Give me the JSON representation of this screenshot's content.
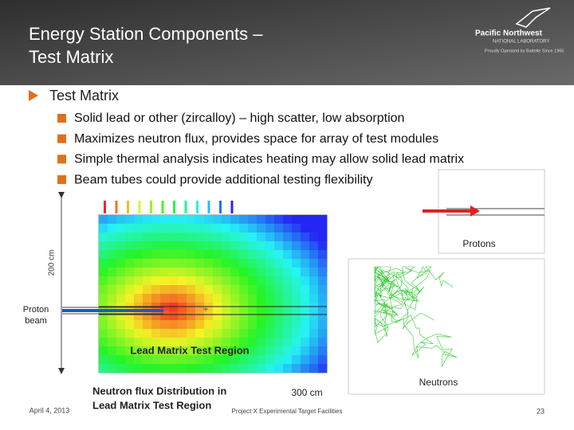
{
  "header": {
    "title_lines": [
      "Energy Station Components –",
      "Test Matrix"
    ],
    "logo_name": "Pacific Northwest",
    "logo_sub": "NATIONAL LABORATORY",
    "logo_tagline": "Proudly Operated by Battelle Since 1965"
  },
  "bullet": "Test Matrix",
  "subbullets": [
    "Solid lead or other (zircalloy) – high scatter, low absorption",
    "Maximizes neutron flux, provides space for array of test modules",
    "Simple thermal analysis indicates heating may allow solid lead matrix",
    "Beam tubes could provide additional testing flexibility"
  ],
  "figure": {
    "y_label": "200 cm",
    "x_label": "300 cm",
    "beam_label": [
      "Proton",
      "beam"
    ],
    "region_label": "Lead Matrix Test Region",
    "caption": [
      "Neutron flux Distribution in",
      "Lead Matrix Test Region"
    ],
    "protons_label": "Protons",
    "neutrons_label": "Neutrons"
  },
  "footer": {
    "date": "April 4, 2013",
    "center": "Project X Experimental Target Facilities",
    "page": "23"
  }
}
